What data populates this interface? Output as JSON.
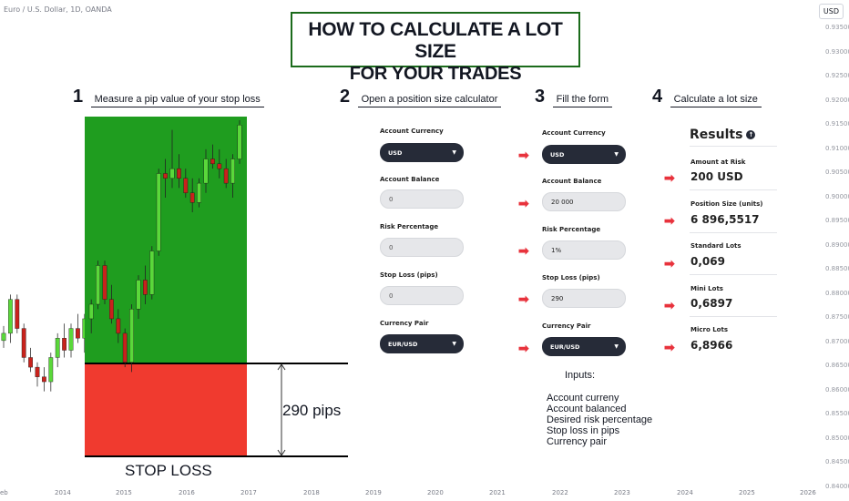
{
  "chart_header": {
    "symbol": "Euro / U.S. Dollar, 1D, OANDA",
    "currency_badge": "USD"
  },
  "price_axis": [
    "0.93500",
    "0.93000",
    "0.92500",
    "0.92000",
    "0.91500",
    "0.91000",
    "0.90500",
    "0.90000",
    "0.89500",
    "0.89000",
    "0.88500",
    "0.88000",
    "0.87500",
    "0.87000",
    "0.86500",
    "0.86000",
    "0.85500",
    "0.85000",
    "0.84500",
    "0.84000"
  ],
  "time_axis": [
    "eb",
    "2014",
    "2015",
    "2016",
    "2017",
    "2018",
    "2019",
    "2020",
    "2021",
    "2022",
    "2023",
    "2024",
    "2025",
    "2026"
  ],
  "title": {
    "line1": "HOW TO CALCULATE A LOT SIZE",
    "line2": "FOR YOUR TRADES"
  },
  "steps": [
    {
      "num": "1",
      "text": "Measure a pip value of your stop loss"
    },
    {
      "num": "2",
      "text": "Open a position size calculator"
    },
    {
      "num": "3",
      "text": "Fill the form"
    },
    {
      "num": "4",
      "text": "Calculate a lot size"
    }
  ],
  "pips_label": "290 pips",
  "stop_loss_label": "STOP LOSS",
  "form_empty": {
    "account_currency_label": "Account Currency",
    "account_currency": "USD",
    "account_balance_label": "Account Balance",
    "account_balance_placeholder": "0",
    "risk_label": "Risk Percentage",
    "risk_placeholder": "0",
    "stop_loss_label": "Stop Loss (pips)",
    "stop_loss_placeholder": "0",
    "pair_label": "Currency Pair",
    "pair": "EUR/USD"
  },
  "form_filled": {
    "account_currency_label": "Account Currency",
    "account_currency": "USD",
    "account_balance_label": "Account Balance",
    "account_balance": "20 000",
    "risk_label": "Risk Percentage",
    "risk": "1%",
    "stop_loss_label": "Stop Loss (pips)",
    "stop_loss": "290",
    "pair_label": "Currency Pair",
    "pair": "EUR/USD"
  },
  "inputs_note": {
    "title": "Inputs:",
    "items": [
      "Account curreny",
      "Account balanced",
      "Desired risk percentage",
      "Stop loss in pips",
      "Currency pair"
    ]
  },
  "results": {
    "title": "Results",
    "items": [
      {
        "label": "Amount at Risk",
        "value": "200 USD"
      },
      {
        "label": "Position Size (units)",
        "value": "6 896,5517"
      },
      {
        "label": "Standard Lots",
        "value": "0,069"
      },
      {
        "label": "Mini Lots",
        "value": "0,6897"
      },
      {
        "label": "Micro Lots",
        "value": "6,8966"
      }
    ]
  },
  "chart_data": {
    "type": "candlestick",
    "candles": [
      {
        "o": 0.8705,
        "h": 0.8735,
        "l": 0.869,
        "c": 0.872
      },
      {
        "o": 0.872,
        "h": 0.88,
        "l": 0.87,
        "c": 0.879
      },
      {
        "o": 0.879,
        "h": 0.88,
        "l": 0.872,
        "c": 0.873
      },
      {
        "o": 0.873,
        "h": 0.874,
        "l": 0.866,
        "c": 0.867
      },
      {
        "o": 0.867,
        "h": 0.869,
        "l": 0.864,
        "c": 0.865
      },
      {
        "o": 0.865,
        "h": 0.866,
        "l": 0.861,
        "c": 0.863
      },
      {
        "o": 0.863,
        "h": 0.865,
        "l": 0.86,
        "c": 0.862
      },
      {
        "o": 0.862,
        "h": 0.868,
        "l": 0.86,
        "c": 0.867
      },
      {
        "o": 0.867,
        "h": 0.872,
        "l": 0.865,
        "c": 0.871
      },
      {
        "o": 0.871,
        "h": 0.874,
        "l": 0.867,
        "c": 0.8685
      },
      {
        "o": 0.8685,
        "h": 0.874,
        "l": 0.867,
        "c": 0.873
      },
      {
        "o": 0.873,
        "h": 0.876,
        "l": 0.87,
        "c": 0.871
      },
      {
        "o": 0.871,
        "h": 0.876,
        "l": 0.868,
        "c": 0.875
      },
      {
        "o": 0.875,
        "h": 0.879,
        "l": 0.872,
        "c": 0.878
      },
      {
        "o": 0.878,
        "h": 0.887,
        "l": 0.877,
        "c": 0.886
      },
      {
        "o": 0.886,
        "h": 0.887,
        "l": 0.878,
        "c": 0.879
      },
      {
        "o": 0.879,
        "h": 0.882,
        "l": 0.874,
        "c": 0.875
      },
      {
        "o": 0.875,
        "h": 0.877,
        "l": 0.87,
        "c": 0.872
      },
      {
        "o": 0.872,
        "h": 0.873,
        "l": 0.865,
        "c": 0.866
      },
      {
        "o": 0.866,
        "h": 0.878,
        "l": 0.864,
        "c": 0.877
      },
      {
        "o": 0.877,
        "h": 0.884,
        "l": 0.875,
        "c": 0.883
      },
      {
        "o": 0.883,
        "h": 0.886,
        "l": 0.878,
        "c": 0.88
      },
      {
        "o": 0.88,
        "h": 0.89,
        "l": 0.879,
        "c": 0.889
      },
      {
        "o": 0.889,
        "h": 0.906,
        "l": 0.888,
        "c": 0.905
      },
      {
        "o": 0.905,
        "h": 0.908,
        "l": 0.9,
        "c": 0.904
      },
      {
        "o": 0.904,
        "h": 0.914,
        "l": 0.902,
        "c": 0.906
      },
      {
        "o": 0.906,
        "h": 0.909,
        "l": 0.902,
        "c": 0.904
      },
      {
        "o": 0.904,
        "h": 0.906,
        "l": 0.9,
        "c": 0.901
      },
      {
        "o": 0.901,
        "h": 0.904,
        "l": 0.897,
        "c": 0.899
      },
      {
        "o": 0.899,
        "h": 0.904,
        "l": 0.898,
        "c": 0.903
      },
      {
        "o": 0.903,
        "h": 0.91,
        "l": 0.901,
        "c": 0.908
      },
      {
        "o": 0.908,
        "h": 0.911,
        "l": 0.906,
        "c": 0.907
      },
      {
        "o": 0.907,
        "h": 0.91,
        "l": 0.904,
        "c": 0.906
      },
      {
        "o": 0.906,
        "h": 0.908,
        "l": 0.902,
        "c": 0.903
      },
      {
        "o": 0.903,
        "h": 0.909,
        "l": 0.9,
        "c": 0.908
      },
      {
        "o": 0.908,
        "h": 0.916,
        "l": 0.907,
        "c": 0.915
      }
    ]
  }
}
